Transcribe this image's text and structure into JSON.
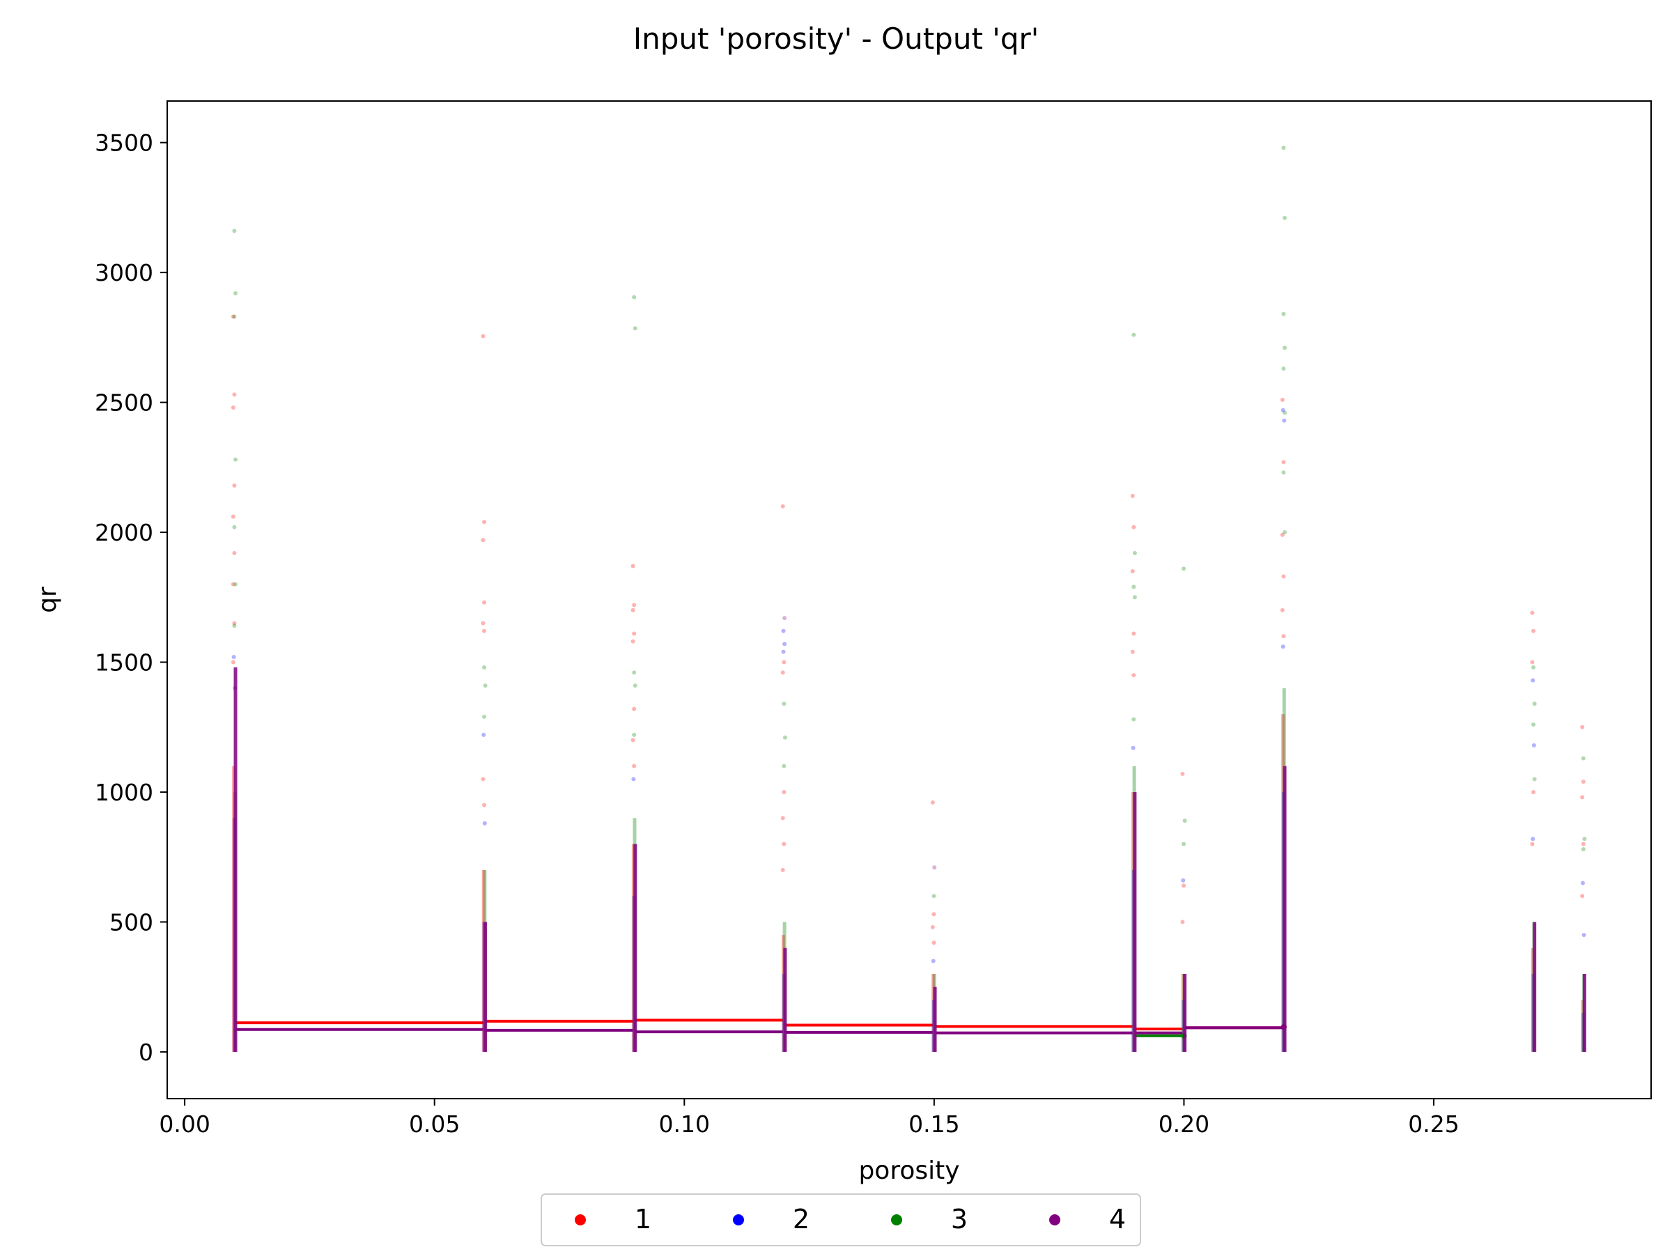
{
  "chart_data": {
    "type": "scatter",
    "title": "Input 'porosity' - Output 'qr'",
    "xlabel": "porosity",
    "ylabel": "qr",
    "xlim": [
      -0.0035,
      0.2935
    ],
    "ylim": [
      -180,
      3660
    ],
    "x_ticks": [
      0.0,
      0.05,
      0.1,
      0.15,
      0.2,
      0.25
    ],
    "x_tick_labels": [
      "0.00",
      "0.05",
      "0.10",
      "0.15",
      "0.20",
      "0.25"
    ],
    "y_ticks": [
      0,
      500,
      1000,
      1500,
      2000,
      2500,
      3000,
      3500
    ],
    "y_tick_labels": [
      "0",
      "500",
      "1000",
      "1500",
      "2000",
      "2500",
      "3000",
      "3500"
    ],
    "grid": false,
    "legend": {
      "placement": "bottom-center",
      "ncol": 4
    },
    "series": [
      {
        "name": "1",
        "color": "#ff0000",
        "columns": [
          {
            "x": 0.01,
            "dense_max": 1100,
            "outliers": [
              2830,
              2530,
              2480,
              2180,
              2060,
              1920,
              1800,
              1650,
              1500
            ]
          },
          {
            "x": 0.06,
            "dense_max": 700,
            "outliers": [
              2755,
              2040,
              1970,
              1730,
              1650,
              1620,
              1050,
              950
            ]
          },
          {
            "x": 0.09,
            "dense_max": 800,
            "outliers": [
              1870,
              1720,
              1700,
              1610,
              1580,
              1320,
              1200,
              1100
            ]
          },
          {
            "x": 0.12,
            "dense_max": 450,
            "outliers": [
              2100,
              1500,
              1460,
              1000,
              900,
              800,
              700
            ]
          },
          {
            "x": 0.15,
            "dense_max": 300,
            "outliers": [
              960,
              530,
              480,
              420
            ]
          },
          {
            "x": 0.19,
            "dense_max": 1000,
            "outliers": [
              2140,
              2020,
              1850,
              1610,
              1540,
              1450
            ]
          },
          {
            "x": 0.2,
            "dense_max": 300,
            "outliers": [
              1070,
              640,
              500
            ]
          },
          {
            "x": 0.22,
            "dense_max": 1300,
            "outliers": [
              2510,
              2270,
              1990,
              1830,
              1700,
              1600
            ]
          },
          {
            "x": 0.27,
            "dense_max": 400,
            "outliers": [
              1690,
              1620,
              1500,
              1000,
              800
            ]
          },
          {
            "x": 0.28,
            "dense_max": 200,
            "outliers": [
              1250,
              1040,
              980,
              800,
              600
            ]
          }
        ],
        "trend": [
          [
            0.01,
            112
          ],
          [
            0.06,
            118
          ],
          [
            0.09,
            122
          ],
          [
            0.12,
            103
          ],
          [
            0.15,
            98
          ],
          [
            0.19,
            88
          ],
          [
            0.2,
            93
          ],
          [
            0.22,
            96
          ]
        ]
      },
      {
        "name": "2",
        "color": "#0000ff",
        "columns": [
          {
            "x": 0.01,
            "dense_max": 900,
            "outliers": [
              1520,
              1400
            ]
          },
          {
            "x": 0.06,
            "dense_max": 500,
            "outliers": [
              1220,
              880
            ]
          },
          {
            "x": 0.09,
            "dense_max": 600,
            "outliers": [
              1050
            ]
          },
          {
            "x": 0.12,
            "dense_max": 300,
            "outliers": [
              1620,
              1570,
              1540
            ]
          },
          {
            "x": 0.15,
            "dense_max": 200,
            "outliers": [
              350
            ]
          },
          {
            "x": 0.19,
            "dense_max": 700,
            "outliers": [
              1170
            ]
          },
          {
            "x": 0.2,
            "dense_max": 200,
            "outliers": [
              660
            ]
          },
          {
            "x": 0.22,
            "dense_max": 1000,
            "outliers": [
              2470,
              2430,
              1560
            ]
          },
          {
            "x": 0.27,
            "dense_max": 300,
            "outliers": [
              1430,
              1180,
              820
            ]
          },
          {
            "x": 0.28,
            "dense_max": 150,
            "outliers": [
              650,
              450
            ]
          }
        ],
        "trend": []
      },
      {
        "name": "3",
        "color": "#008000",
        "columns": [
          {
            "x": 0.01,
            "dense_max": 1000,
            "outliers": [
              3160,
              2920,
              2830,
              2280,
              2020,
              1800,
              1640
            ]
          },
          {
            "x": 0.06,
            "dense_max": 700,
            "outliers": [
              1480,
              1410,
              1290
            ]
          },
          {
            "x": 0.09,
            "dense_max": 900,
            "outliers": [
              2905,
              2785,
              1460,
              1410,
              1220
            ]
          },
          {
            "x": 0.12,
            "dense_max": 500,
            "outliers": [
              1340,
              1210,
              1100
            ]
          },
          {
            "x": 0.15,
            "dense_max": 300,
            "outliers": [
              600
            ]
          },
          {
            "x": 0.19,
            "dense_max": 1100,
            "outliers": [
              2760,
              1920,
              1790,
              1750,
              1280
            ]
          },
          {
            "x": 0.2,
            "dense_max": 300,
            "outliers": [
              1860,
              890,
              800
            ]
          },
          {
            "x": 0.22,
            "dense_max": 1400,
            "outliers": [
              3480,
              3210,
              2840,
              2710,
              2630,
              2460,
              2230,
              2000
            ]
          },
          {
            "x": 0.27,
            "dense_max": 500,
            "outliers": [
              1480,
              1340,
              1260,
              1050
            ]
          },
          {
            "x": 0.28,
            "dense_max": 300,
            "outliers": [
              1130,
              820,
              780
            ]
          }
        ],
        "trend": [
          [
            0.19,
            62
          ],
          [
            0.2,
            62
          ]
        ]
      },
      {
        "name": "4",
        "color": "#800080",
        "columns": [
          {
            "x": 0.01,
            "dense_max": 1480,
            "outliers": []
          },
          {
            "x": 0.06,
            "dense_max": 500,
            "outliers": []
          },
          {
            "x": 0.09,
            "dense_max": 800,
            "outliers": []
          },
          {
            "x": 0.12,
            "dense_max": 400,
            "outliers": [
              1670
            ]
          },
          {
            "x": 0.15,
            "dense_max": 250,
            "outliers": [
              710
            ]
          },
          {
            "x": 0.19,
            "dense_max": 1000,
            "outliers": []
          },
          {
            "x": 0.2,
            "dense_max": 300,
            "outliers": []
          },
          {
            "x": 0.22,
            "dense_max": 1100,
            "outliers": []
          },
          {
            "x": 0.27,
            "dense_max": 500,
            "outliers": []
          },
          {
            "x": 0.28,
            "dense_max": 300,
            "outliers": []
          }
        ],
        "trend": [
          [
            0.01,
            86
          ],
          [
            0.06,
            83
          ],
          [
            0.09,
            77
          ],
          [
            0.12,
            75
          ],
          [
            0.15,
            73
          ],
          [
            0.19,
            73
          ],
          [
            0.2,
            93
          ],
          [
            0.22,
            96
          ]
        ]
      }
    ]
  }
}
